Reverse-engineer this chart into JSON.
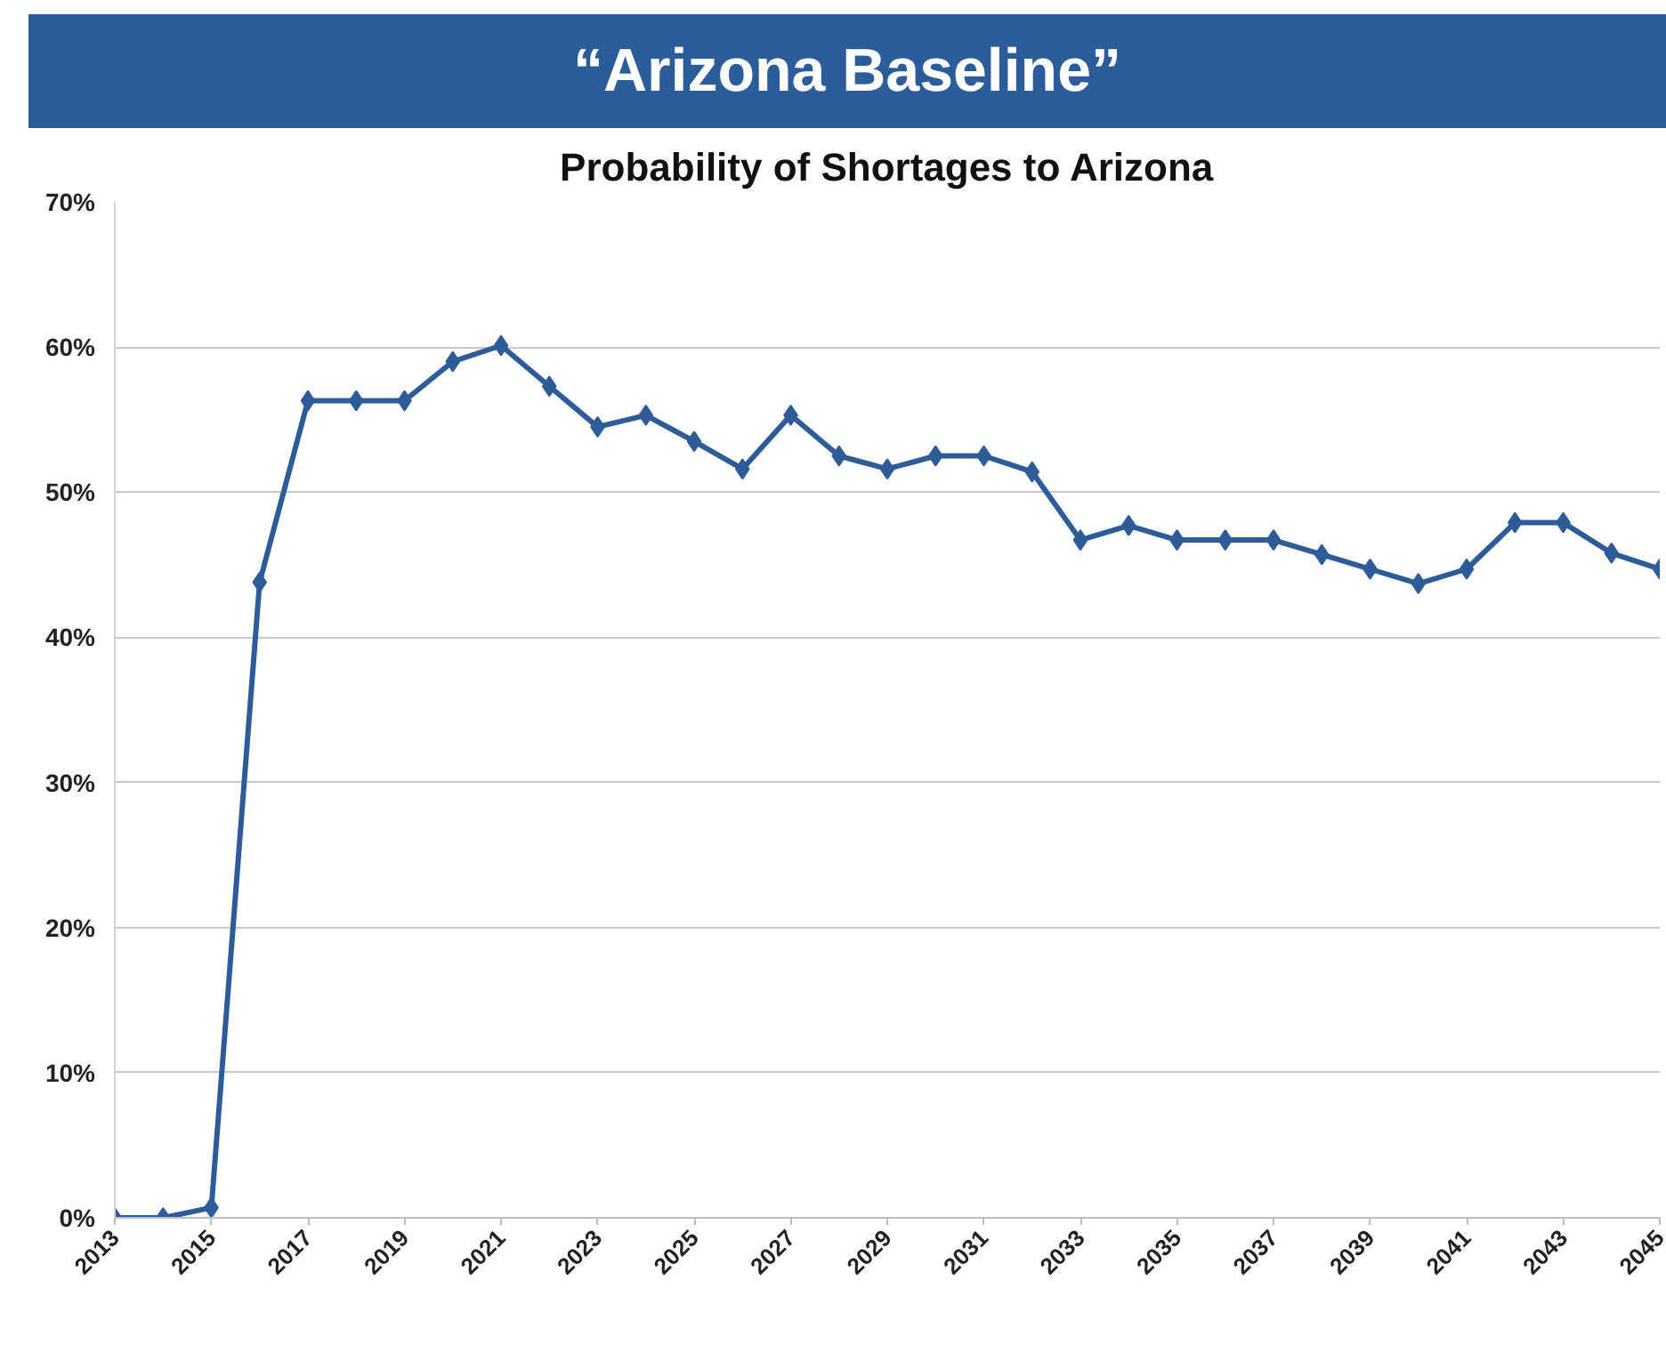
{
  "chart_data": {
    "type": "line",
    "title": "“Arizona Baseline”",
    "subtitle": "Probability of Shortages to Arizona",
    "x": [
      2013,
      2014,
      2015,
      2016,
      2017,
      2018,
      2019,
      2020,
      2021,
      2022,
      2023,
      2024,
      2025,
      2026,
      2027,
      2028,
      2029,
      2030,
      2031,
      2032,
      2033,
      2034,
      2035,
      2036,
      2037,
      2038,
      2039,
      2040,
      2041,
      2042,
      2043,
      2044,
      2045
    ],
    "series": [
      {
        "color": "#2e5c99",
        "values": [
          0,
          0,
          0.7,
          43.8,
          56.3,
          56.3,
          56.3,
          59.0,
          60.1,
          57.3,
          54.5,
          55.3,
          53.5,
          51.6,
          55.3,
          52.5,
          51.6,
          52.5,
          52.5,
          51.4,
          46.7,
          47.7,
          46.7,
          46.7,
          46.7,
          45.7,
          44.7,
          43.7,
          44.7,
          47.9,
          47.9,
          45.8,
          44.7
        ]
      }
    ],
    "xlim": [
      2013,
      2045
    ],
    "xticks": [
      2013,
      2015,
      2017,
      2019,
      2021,
      2023,
      2025,
      2027,
      2029,
      2031,
      2033,
      2035,
      2037,
      2039,
      2041,
      2043,
      2045
    ],
    "ylim": [
      0,
      70
    ],
    "yticks": [
      {
        "value": 0,
        "label": "0%"
      },
      {
        "value": 10,
        "label": "10%"
      },
      {
        "value": 20,
        "label": "20%"
      },
      {
        "value": 30,
        "label": "30%"
      },
      {
        "value": 40,
        "label": "40%"
      },
      {
        "value": 50,
        "label": "50%"
      },
      {
        "value": 60,
        "label": "60%"
      },
      {
        "value": 70,
        "label": "70%"
      }
    ],
    "grid": "y",
    "marker": "diamond",
    "line_style": "solid"
  }
}
